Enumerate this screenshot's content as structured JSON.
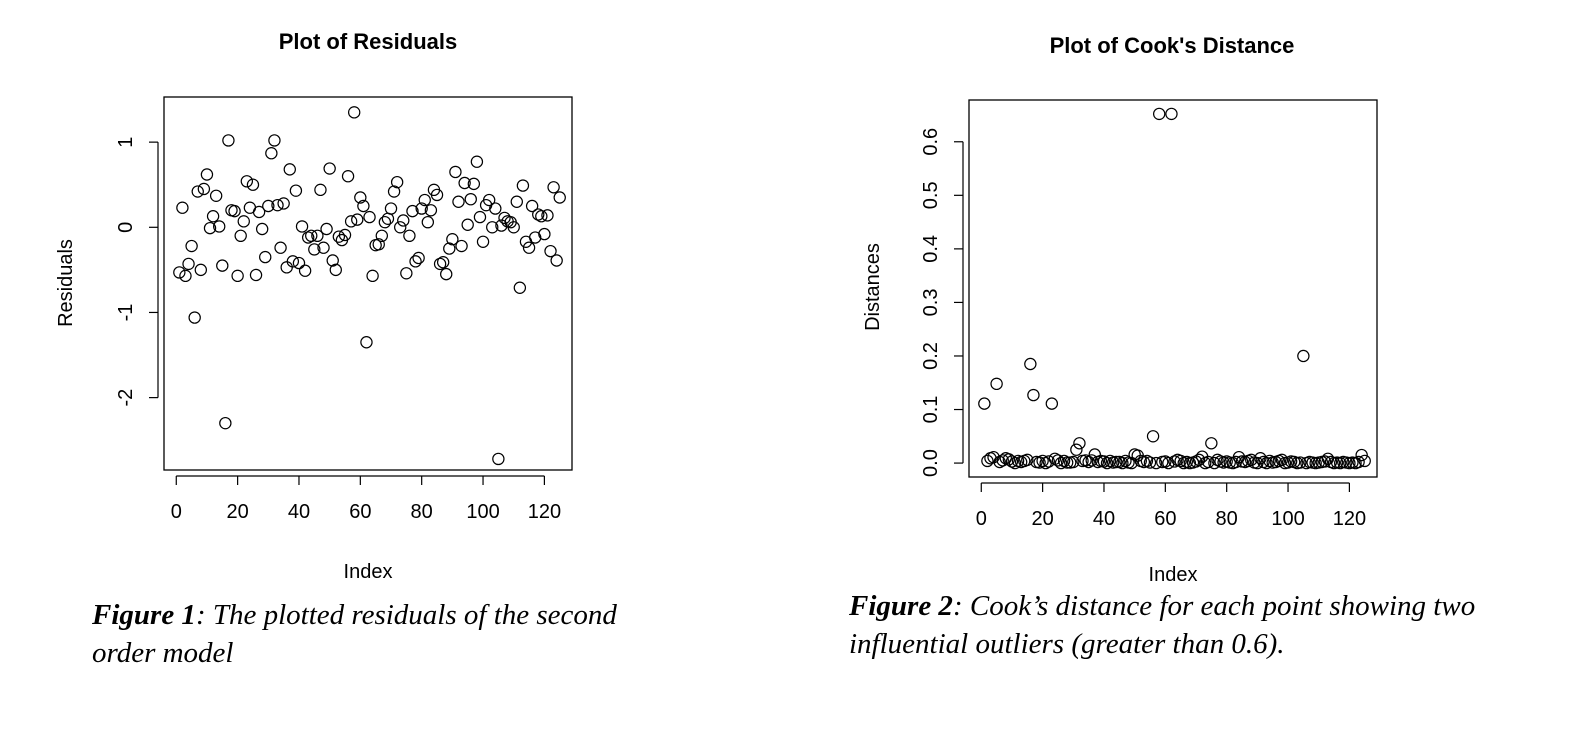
{
  "figures": [
    {
      "caption_label": "Figure 1",
      "caption_text": ": The plotted residuals of the second order model"
    },
    {
      "caption_label": "Figure 2",
      "caption_text": ": Cook’s distance for each point showing two influential outliers (greater than 0.6)."
    }
  ],
  "chart_data": [
    {
      "type": "scatter",
      "title": "Plot of Residuals",
      "xlabel": "Index",
      "ylabel": "Residuals",
      "xlim": [
        -4,
        129
      ],
      "ylim": [
        -2.85,
        1.53
      ],
      "xticks": [
        0,
        20,
        40,
        60,
        80,
        100,
        120
      ],
      "yticks": [
        -2,
        -1,
        0,
        1
      ],
      "grid": false,
      "marker": "open-circle",
      "x": [
        1,
        2,
        3,
        4,
        5,
        6,
        7,
        8,
        9,
        10,
        11,
        12,
        13,
        14,
        15,
        16,
        17,
        18,
        19,
        20,
        21,
        22,
        23,
        24,
        25,
        26,
        27,
        28,
        29,
        30,
        31,
        32,
        33,
        34,
        35,
        36,
        37,
        38,
        39,
        40,
        41,
        42,
        43,
        44,
        45,
        46,
        47,
        48,
        49,
        50,
        51,
        52,
        53,
        54,
        55,
        56,
        57,
        58,
        59,
        60,
        61,
        62,
        63,
        64,
        65,
        66,
        67,
        68,
        69,
        70,
        71,
        72,
        73,
        74,
        75,
        76,
        77,
        78,
        79,
        80,
        81,
        82,
        83,
        84,
        85,
        86,
        87,
        88,
        89,
        90,
        91,
        92,
        93,
        94,
        95,
        96,
        97,
        98,
        99,
        100,
        101,
        102,
        103,
        104,
        105,
        106,
        107,
        108,
        109,
        110,
        111,
        112,
        113,
        114,
        115,
        116,
        117,
        118,
        119,
        120,
        121,
        122,
        123,
        124,
        125
      ],
      "y": [
        -0.53,
        0.23,
        -0.57,
        -0.43,
        -0.22,
        -1.06,
        0.42,
        -0.5,
        0.45,
        0.62,
        -0.01,
        0.13,
        0.37,
        0.01,
        -0.45,
        -2.3,
        1.02,
        0.2,
        0.19,
        -0.57,
        -0.1,
        0.07,
        0.54,
        0.23,
        0.5,
        -0.56,
        0.18,
        -0.02,
        -0.35,
        0.25,
        0.87,
        1.02,
        0.26,
        -0.24,
        0.28,
        -0.47,
        0.68,
        -0.4,
        0.43,
        -0.42,
        0.01,
        -0.51,
        -0.12,
        -0.1,
        -0.26,
        -0.1,
        0.44,
        -0.24,
        -0.02,
        0.69,
        -0.39,
        -0.5,
        -0.11,
        -0.15,
        -0.09,
        0.6,
        0.07,
        1.35,
        0.09,
        0.35,
        0.25,
        -1.35,
        0.12,
        -0.57,
        -0.21,
        -0.2,
        -0.1,
        0.06,
        0.1,
        0.22,
        0.42,
        0.53,
        0.0,
        0.08,
        -0.54,
        -0.1,
        0.19,
        -0.4,
        -0.36,
        0.22,
        0.32,
        0.06,
        0.2,
        0.44,
        0.38,
        -0.43,
        -0.41,
        -0.55,
        -0.25,
        -0.14,
        0.65,
        0.3,
        -0.22,
        0.52,
        0.03,
        0.33,
        0.51,
        0.77,
        0.12,
        -0.17,
        0.26,
        0.32,
        0.0,
        0.22,
        -2.72,
        0.02,
        0.11,
        0.07,
        0.06,
        0.0,
        0.3,
        -0.71,
        0.49,
        -0.17,
        -0.24,
        0.25,
        -0.12,
        0.15,
        0.13,
        -0.08,
        0.14,
        -0.28,
        0.47,
        -0.39,
        0.35
      ]
    },
    {
      "type": "scatter",
      "title": "Plot of Cook's Distance",
      "xlabel": "Index",
      "ylabel": "Distances",
      "xlim": [
        -4,
        129
      ],
      "ylim": [
        -0.026,
        0.678
      ],
      "xticks": [
        0,
        20,
        40,
        60,
        80,
        100,
        120
      ],
      "yticks": [
        0.0,
        0.1,
        0.2,
        0.3,
        0.4,
        0.5,
        0.6
      ],
      "grid": false,
      "marker": "open-circle",
      "x": [
        1,
        2,
        3,
        4,
        5,
        6,
        7,
        8,
        9,
        10,
        11,
        12,
        13,
        14,
        15,
        16,
        17,
        18,
        19,
        20,
        21,
        22,
        23,
        24,
        25,
        26,
        27,
        28,
        29,
        30,
        31,
        32,
        33,
        34,
        35,
        36,
        37,
        38,
        39,
        40,
        41,
        42,
        43,
        44,
        45,
        46,
        47,
        48,
        49,
        50,
        51,
        52,
        53,
        54,
        55,
        56,
        57,
        58,
        59,
        60,
        61,
        62,
        63,
        64,
        65,
        66,
        67,
        68,
        69,
        70,
        71,
        72,
        73,
        74,
        75,
        76,
        77,
        78,
        79,
        80,
        81,
        82,
        83,
        84,
        85,
        86,
        87,
        88,
        89,
        90,
        91,
        92,
        93,
        94,
        95,
        96,
        97,
        98,
        99,
        100,
        101,
        102,
        103,
        104,
        105,
        106,
        107,
        108,
        109,
        110,
        111,
        112,
        113,
        114,
        115,
        116,
        117,
        118,
        119,
        120,
        121,
        122,
        123,
        124,
        125
      ],
      "y": [
        0.111,
        0.004,
        0.009,
        0.011,
        0.148,
        0.002,
        0.005,
        0.009,
        0.007,
        0.003,
        0.0,
        0.004,
        0.002,
        0.004,
        0.006,
        0.185,
        0.127,
        0.002,
        0.001,
        0.004,
        0.0,
        0.003,
        0.111,
        0.008,
        0.005,
        0.0,
        0.004,
        0.001,
        0.001,
        0.002,
        0.025,
        0.037,
        0.004,
        0.005,
        0.002,
        0.005,
        0.016,
        0.002,
        0.004,
        0.003,
        0.0,
        0.004,
        0.001,
        0.002,
        0.002,
        0.0,
        0.004,
        0.001,
        0.0,
        0.016,
        0.014,
        0.004,
        0.002,
        0.004,
        0.001,
        0.05,
        0.0,
        0.652,
        0.002,
        0.003,
        0.0,
        0.652,
        0.003,
        0.006,
        0.004,
        0.0,
        0.002,
        0.0,
        0.001,
        0.003,
        0.006,
        0.012,
        0.0,
        0.002,
        0.037,
        0.0,
        0.006,
        0.003,
        0.001,
        0.003,
        0.001,
        0.0,
        0.002,
        0.011,
        0.003,
        0.002,
        0.004,
        0.006,
        0.001,
        0.0,
        0.009,
        0.002,
        0.0,
        0.004,
        0.001,
        0.002,
        0.004,
        0.006,
        0.0,
        0.001,
        0.003,
        0.002,
        0.0,
        0.001,
        0.2,
        0.0,
        0.002,
        0.001,
        0.0,
        0.001,
        0.002,
        0.003,
        0.008,
        0.002,
        0.0,
        0.001,
        0.0,
        0.002,
        0.001,
        0.0,
        0.001,
        0.0,
        0.002,
        0.015,
        0.004
      ]
    }
  ]
}
